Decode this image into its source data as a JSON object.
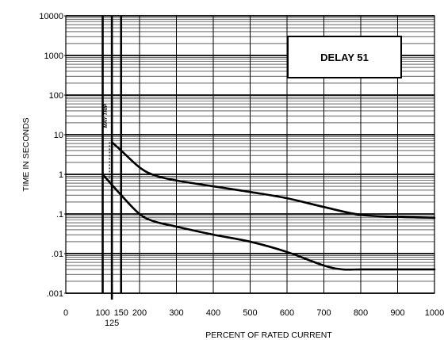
{
  "chart_data": {
    "type": "line",
    "title": "",
    "xlabel": "PERCENT OF RATED CURRENT",
    "ylabel": "TIME IN SECONDS",
    "x_scale": "linear",
    "y_scale": "log",
    "xlim": [
      0,
      1000
    ],
    "ylim": [
      0.001,
      10000
    ],
    "grid": true,
    "x_ticks": [
      {
        "value": 0,
        "label": "0"
      },
      {
        "value": 100,
        "label": "100"
      },
      {
        "value": 125,
        "label": "125"
      },
      {
        "value": 150,
        "label": "150"
      },
      {
        "value": 200,
        "label": "200"
      },
      {
        "value": 300,
        "label": "300"
      },
      {
        "value": 400,
        "label": "400"
      },
      {
        "value": 500,
        "label": "500"
      },
      {
        "value": 600,
        "label": "600"
      },
      {
        "value": 700,
        "label": "700"
      },
      {
        "value": 800,
        "label": "800"
      },
      {
        "value": 900,
        "label": "900"
      },
      {
        "value": 1000,
        "label": "1000"
      }
    ],
    "y_ticks": [
      {
        "value": 10000,
        "label": "10000"
      },
      {
        "value": 1000,
        "label": "1000"
      },
      {
        "value": 100,
        "label": "100"
      },
      {
        "value": 10,
        "label": "10"
      },
      {
        "value": 1,
        "label": "1"
      },
      {
        "value": 0.1,
        "label": ".1"
      },
      {
        "value": 0.01,
        "label": ".01"
      },
      {
        "value": 0.001,
        "label": ".001"
      }
    ],
    "reference_lines_x": [
      100,
      125,
      150
    ],
    "annotation": {
      "text": "MAY TRIP",
      "x": 112,
      "y": 30
    },
    "legend_box": {
      "text": "DELAY 51"
    },
    "series": [
      {
        "values": [
          {
            "x": 125,
            "y": 6.5
          },
          {
            "x": 150,
            "y": 4
          },
          {
            "x": 200,
            "y": 1.5
          },
          {
            "x": 240,
            "y": 0.95
          },
          {
            "x": 300,
            "y": 0.7
          },
          {
            "x": 400,
            "y": 0.5
          },
          {
            "x": 500,
            "y": 0.36
          },
          {
            "x": 600,
            "y": 0.25
          },
          {
            "x": 700,
            "y": 0.15
          },
          {
            "x": 800,
            "y": 0.095
          },
          {
            "x": 900,
            "y": 0.085
          },
          {
            "x": 1000,
            "y": 0.08
          }
        ]
      },
      {
        "values": [
          {
            "x": 100,
            "y": 1
          },
          {
            "x": 150,
            "y": 0.3
          },
          {
            "x": 200,
            "y": 0.1
          },
          {
            "x": 240,
            "y": 0.065
          },
          {
            "x": 300,
            "y": 0.048
          },
          {
            "x": 400,
            "y": 0.03
          },
          {
            "x": 500,
            "y": 0.02
          },
          {
            "x": 600,
            "y": 0.011
          },
          {
            "x": 700,
            "y": 0.005
          },
          {
            "x": 750,
            "y": 0.004
          },
          {
            "x": 800,
            "y": 0.004
          },
          {
            "x": 900,
            "y": 0.004
          },
          {
            "x": 1000,
            "y": 0.004
          }
        ]
      }
    ],
    "colors": {
      "line": "#000000",
      "background": "#ffffff"
    }
  }
}
